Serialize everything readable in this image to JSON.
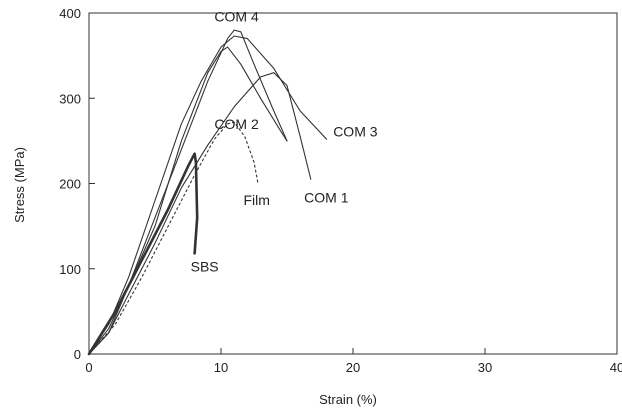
{
  "chart_data": {
    "type": "line",
    "title": "",
    "xlabel": "Strain (%)",
    "ylabel": "Stress (MPa)",
    "xlim": [
      0,
      40
    ],
    "ylim": [
      0,
      400
    ],
    "x_ticks": [
      0,
      10,
      20,
      30,
      40
    ],
    "y_ticks": [
      0,
      100,
      200,
      300,
      400
    ],
    "grid": false,
    "series": [
      {
        "name": "COM 4",
        "style": "solid",
        "x": [
          0,
          1.5,
          3,
          5,
          7,
          9,
          10.5,
          11,
          11.5,
          12.5,
          14,
          15
        ],
        "y": [
          0,
          30,
          80,
          160,
          240,
          320,
          370,
          380,
          378,
          340,
          285,
          250
        ]
      },
      {
        "name": "COM 2",
        "style": "solid",
        "x": [
          0,
          1.5,
          3,
          5,
          7,
          9,
          10,
          10.5,
          11.5,
          13,
          14.5,
          15
        ],
        "y": [
          0,
          25,
          80,
          150,
          250,
          330,
          355,
          360,
          340,
          300,
          262,
          250
        ]
      },
      {
        "name": "COM 3",
        "style": "solid",
        "x": [
          0,
          1.5,
          3,
          5,
          7,
          8.5,
          10,
          11,
          12,
          14,
          16,
          18
        ],
        "y": [
          0,
          35,
          90,
          180,
          270,
          320,
          360,
          373,
          370,
          335,
          285,
          252
        ]
      },
      {
        "name": "COM 1",
        "style": "solid",
        "x": [
          0,
          1.5,
          3,
          5,
          7,
          9,
          11,
          13,
          14,
          15,
          16,
          16.8
        ],
        "y": [
          0,
          25,
          70,
          130,
          195,
          245,
          290,
          325,
          330,
          315,
          255,
          205
        ]
      },
      {
        "name": "SBS",
        "style": "bold",
        "x": [
          0,
          2,
          4,
          6,
          7.5,
          8,
          8.1,
          8.2,
          8.0
        ],
        "y": [
          0,
          50,
          110,
          170,
          220,
          235,
          225,
          160,
          118
        ]
      },
      {
        "name": "Film",
        "style": "dotted",
        "x": [
          0,
          2,
          4,
          6,
          8,
          9.5,
          10.5,
          11,
          11.8,
          12.5,
          12.8
        ],
        "y": [
          0,
          35,
          90,
          150,
          210,
          252,
          270,
          272,
          255,
          225,
          200
        ]
      }
    ],
    "annotations": [
      {
        "text": "COM 4",
        "x": 9.5,
        "y": 390
      },
      {
        "text": "COM 2",
        "x": 9.5,
        "y": 264
      },
      {
        "text": "COM 3",
        "x": 18.5,
        "y": 255
      },
      {
        "text": "Film",
        "x": 11.7,
        "y": 175
      },
      {
        "text": "COM 1",
        "x": 16.3,
        "y": 178
      },
      {
        "text": "SBS",
        "x": 7.7,
        "y": 97
      }
    ]
  }
}
